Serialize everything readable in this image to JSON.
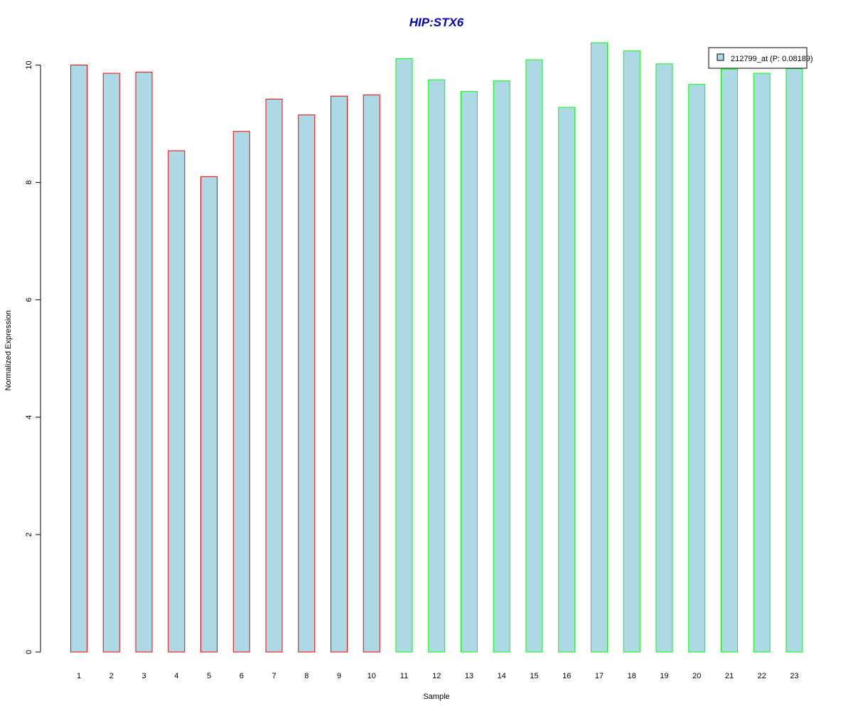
{
  "chart_data": {
    "type": "bar",
    "title": "HIP:STX6",
    "title_color": "#0000CC",
    "xlabel": "Sample",
    "ylabel": "Normalized Expression",
    "categories": [
      "1",
      "2",
      "3",
      "4",
      "5",
      "6",
      "7",
      "8",
      "9",
      "10",
      "11",
      "12",
      "13",
      "14",
      "15",
      "16",
      "17",
      "18",
      "19",
      "20",
      "21",
      "22",
      "23"
    ],
    "series": [
      {
        "name": "212799_at (P: 0.08189)",
        "values": [
          10.0,
          9.86,
          9.88,
          8.54,
          8.1,
          8.87,
          9.42,
          9.15,
          9.47,
          9.49,
          10.11,
          9.75,
          9.55,
          9.73,
          10.09,
          9.28,
          10.38,
          10.24,
          10.02,
          9.67,
          9.93,
          9.86,
          9.94
        ],
        "fill": "#ADD8E6",
        "border_colors": [
          "#FF0000",
          "#FF0000",
          "#FF0000",
          "#FF0000",
          "#FF0000",
          "#FF0000",
          "#FF0000",
          "#FF0000",
          "#FF0000",
          "#FF0000",
          "#00FF00",
          "#00FF00",
          "#00FF00",
          "#00FF00",
          "#00FF00",
          "#00FF00",
          "#00FF00",
          "#00FF00",
          "#00FF00",
          "#00FF00",
          "#00FF00",
          "#00FF00",
          "#00FF00"
        ]
      }
    ],
    "ylim": [
      0,
      10.5
    ],
    "yticks": [
      0,
      2,
      4,
      6,
      8,
      10
    ],
    "grid": false,
    "legend_position": "top-right"
  }
}
